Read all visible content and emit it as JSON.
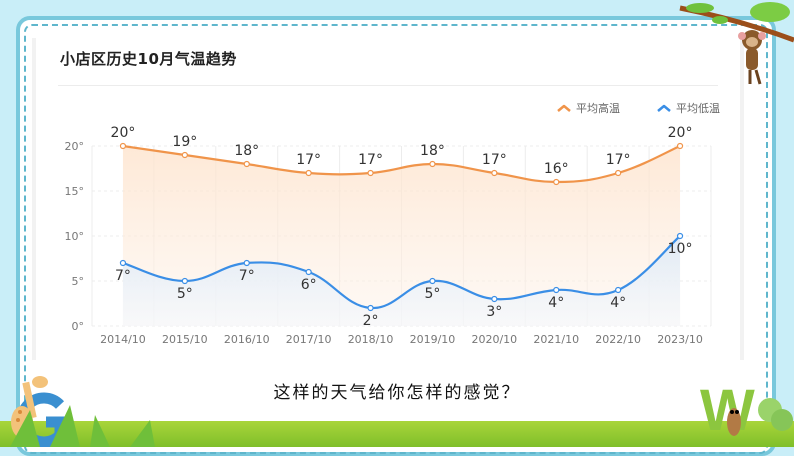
{
  "card": {
    "title": "小店区历史10月气温趋势"
  },
  "legend": {
    "high_label": "平均高温",
    "low_label": "平均低温"
  },
  "question": "这样的天气给你怎样的感觉？",
  "colors": {
    "high": "#f0944a",
    "low": "#3a8ee6",
    "frame": "#79c8dc",
    "background": "#c9eef8"
  },
  "chart_data": {
    "type": "line",
    "title": "小店区历史10月气温趋势",
    "categories": [
      "2014/10",
      "2015/10",
      "2016/10",
      "2017/10",
      "2018/10",
      "2019/10",
      "2020/10",
      "2021/10",
      "2022/10",
      "2023/10"
    ],
    "series": [
      {
        "name": "平均高温",
        "values": [
          20,
          19,
          18,
          17,
          17,
          18,
          17,
          16,
          17,
          20
        ],
        "color": "#f0944a"
      },
      {
        "name": "平均低温",
        "values": [
          7,
          5,
          7,
          6,
          2,
          5,
          3,
          4,
          4,
          10
        ],
        "color": "#3a8ee6"
      }
    ],
    "yticks": [
      "0°",
      "5°",
      "10°",
      "15°",
      "20°"
    ],
    "ylim": [
      0,
      20
    ],
    "xlabel": "",
    "ylabel": "",
    "unit": "°",
    "grid": true,
    "smooth": true,
    "area_fill": true,
    "legend_position": "top-right"
  }
}
